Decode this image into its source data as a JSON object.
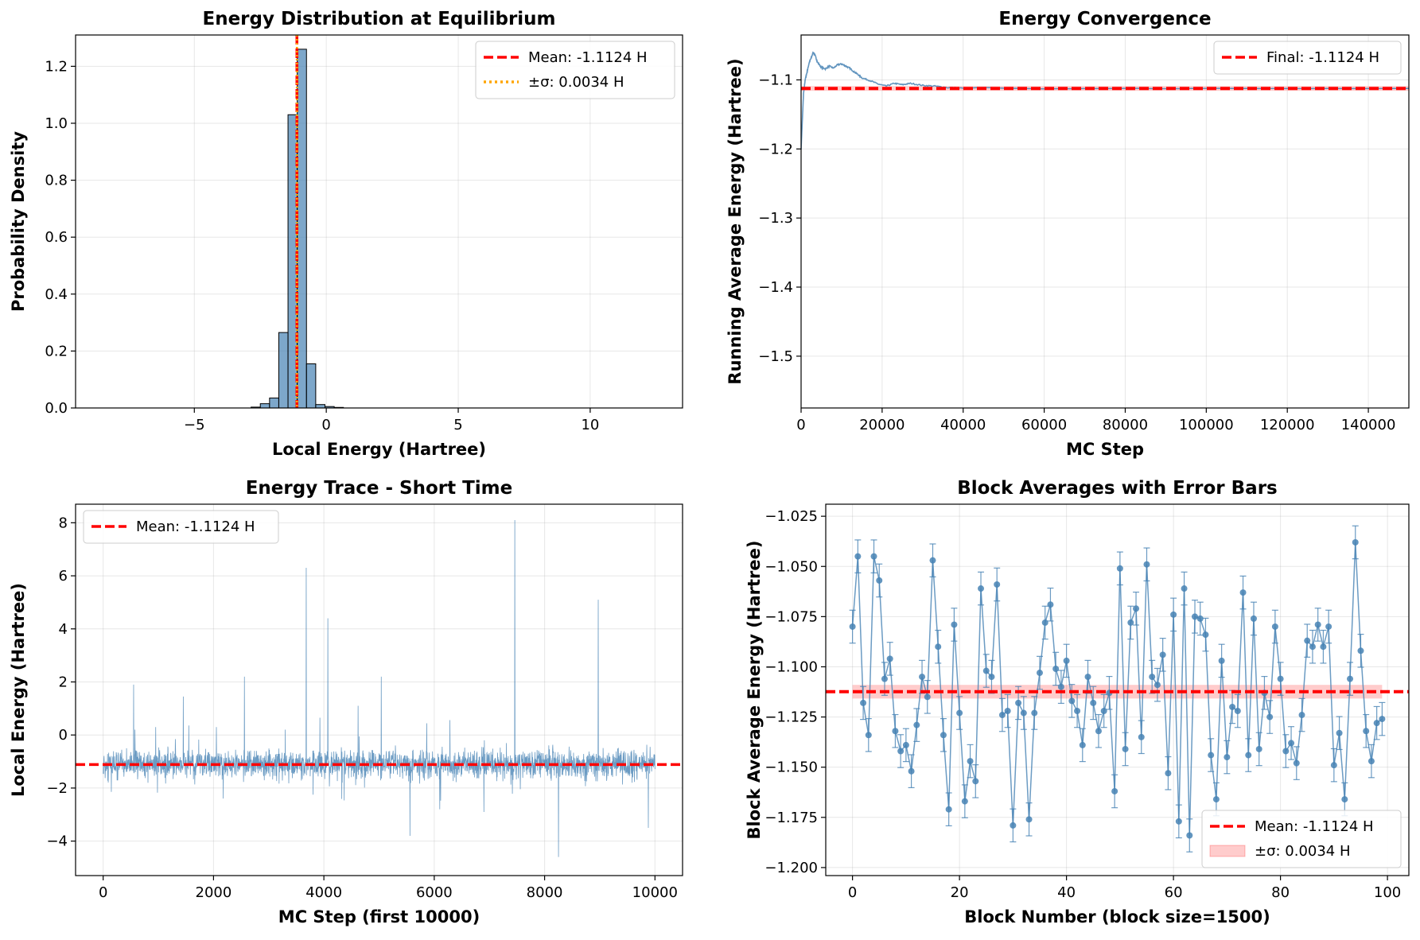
{
  "colors": {
    "steelblue": "#4682b4",
    "red": "#ff0000",
    "orange": "#ffa500",
    "grid": "#b0b0b0",
    "band": "#ff0000"
  },
  "chart_data": [
    {
      "id": "p1",
      "type": "bar",
      "title": "Energy Distribution at Equilibrium",
      "xlabel": "Local Energy (Hartree)",
      "ylabel": "Probability Density",
      "xlim": [
        -9.5,
        13.5
      ],
      "ylim": [
        0,
        1.31
      ],
      "xticks": [
        -5,
        0,
        5,
        10
      ],
      "xtick_labels": [
        "−5",
        "0",
        "5",
        "10"
      ],
      "yticks": [
        0,
        0.2,
        0.4,
        0.6,
        0.8,
        1.0,
        1.2
      ],
      "ytick_labels": [
        "0.0",
        "0.2",
        "0.4",
        "0.6",
        "0.8",
        "1.0",
        "1.2"
      ],
      "grid": true,
      "legend_position": "upper right",
      "bins": [
        {
          "x0": -2.85,
          "x1": -2.5,
          "value": 0.003
        },
        {
          "x0": -2.5,
          "x1": -2.15,
          "value": 0.015
        },
        {
          "x0": -2.15,
          "x1": -1.8,
          "value": 0.035
        },
        {
          "x0": -1.8,
          "x1": -1.45,
          "value": 0.265
        },
        {
          "x0": -1.45,
          "x1": -1.1,
          "value": 1.03
        },
        {
          "x0": -1.1,
          "x1": -0.75,
          "value": 1.26
        },
        {
          "x0": -0.75,
          "x1": -0.4,
          "value": 0.155
        },
        {
          "x0": -0.4,
          "x1": -0.05,
          "value": 0.012
        },
        {
          "x0": -0.05,
          "x1": 0.3,
          "value": 0.005
        },
        {
          "x0": 0.3,
          "x1": 0.65,
          "value": 0.002
        }
      ],
      "vlines": [
        {
          "x": -1.1124,
          "color": "#ff0000",
          "style": "dashed"
        },
        {
          "x": -1.1158,
          "color": "#ffa500",
          "style": "dotted"
        },
        {
          "x": -1.109,
          "color": "#ffa500",
          "style": "dotted"
        }
      ],
      "legend": [
        {
          "label": "Mean: -1.1124 H",
          "color": "#ff0000",
          "style": "dashed"
        },
        {
          "label": "±σ: 0.0034 H",
          "color": "#ffa500",
          "style": "dotted"
        }
      ]
    },
    {
      "id": "p2",
      "type": "line",
      "title": "Energy Convergence",
      "xlabel": "MC Step",
      "ylabel": "Running Average Energy (Hartree)",
      "xlim": [
        0,
        150000
      ],
      "ylim": [
        -1.575,
        -1.035
      ],
      "xticks": [
        0,
        20000,
        40000,
        60000,
        80000,
        100000,
        120000,
        140000
      ],
      "xtick_labels": [
        "0",
        "20000",
        "40000",
        "60000",
        "80000",
        "100000",
        "120000",
        "140000"
      ],
      "yticks": [
        -1.5,
        -1.4,
        -1.3,
        -1.2,
        -1.1
      ],
      "ytick_labels": [
        "−1.5",
        "−1.4",
        "−1.3",
        "−1.2",
        "−1.1"
      ],
      "grid": true,
      "legend_position": "upper right",
      "x": [
        0,
        300,
        600,
        1000,
        1500,
        2000,
        2500,
        3000,
        3500,
        4000,
        5000,
        6000,
        7000,
        8000,
        9000,
        10000,
        11000,
        12000,
        13000,
        14000,
        15000,
        17000,
        19000,
        21000,
        23000,
        25000,
        27000,
        30000,
        33000,
        36000,
        40000,
        45000,
        50000,
        60000,
        70000,
        80000,
        90000,
        100000,
        110000,
        120000,
        130000,
        140000,
        150000
      ],
      "y": [
        -1.2,
        -1.16,
        -1.12,
        -1.1,
        -1.088,
        -1.075,
        -1.068,
        -1.06,
        -1.065,
        -1.074,
        -1.082,
        -1.084,
        -1.08,
        -1.083,
        -1.078,
        -1.077,
        -1.08,
        -1.083,
        -1.088,
        -1.092,
        -1.097,
        -1.101,
        -1.106,
        -1.109,
        -1.105,
        -1.107,
        -1.105,
        -1.108,
        -1.109,
        -1.111,
        -1.112,
        -1.111,
        -1.112,
        -1.113,
        -1.1125,
        -1.1123,
        -1.1126,
        -1.1124,
        -1.1123,
        -1.1125,
        -1.1124,
        -1.1124,
        -1.1124
      ],
      "hline": -1.1124,
      "band": [
        -1.1158,
        -1.109
      ],
      "legend": [
        {
          "label": "Final: -1.1124 H",
          "color": "#ff0000",
          "style": "dashed"
        }
      ]
    },
    {
      "id": "p3",
      "type": "line",
      "title": "Energy Trace - Short Time",
      "xlabel": "MC Step (first 10000)",
      "ylabel": "Local Energy (Hartree)",
      "xlim": [
        -500,
        10500
      ],
      "ylim": [
        -5.3,
        8.7
      ],
      "xticks": [
        0,
        2000,
        4000,
        6000,
        8000,
        10000
      ],
      "xtick_labels": [
        "0",
        "2000",
        "4000",
        "6000",
        "8000",
        "10000"
      ],
      "yticks": [
        -4,
        -2,
        0,
        2,
        4,
        6,
        8
      ],
      "ytick_labels": [
        "−4",
        "−2",
        "0",
        "2",
        "4",
        "6",
        "8"
      ],
      "grid": true,
      "legend_position": "upper left",
      "n_steps": 10000,
      "noise_center": -1.1,
      "noise_spread": 0.35,
      "spikes": [
        {
          "x": 550,
          "y": 1.9
        },
        {
          "x": 950,
          "y": 0.3
        },
        {
          "x": 1450,
          "y": 1.45
        },
        {
          "x": 2050,
          "y": 0.3
        },
        {
          "x": 2560,
          "y": 2.2
        },
        {
          "x": 3300,
          "y": 0.2
        },
        {
          "x": 3680,
          "y": 6.3
        },
        {
          "x": 4070,
          "y": 4.4
        },
        {
          "x": 4620,
          "y": 1.1
        },
        {
          "x": 5040,
          "y": 2.2
        },
        {
          "x": 5560,
          "y": -3.8
        },
        {
          "x": 6100,
          "y": -2.8
        },
        {
          "x": 6900,
          "y": -2.9
        },
        {
          "x": 7460,
          "y": 8.1
        },
        {
          "x": 8250,
          "y": -4.6
        },
        {
          "x": 8970,
          "y": 5.1
        },
        {
          "x": 9880,
          "y": -3.5
        }
      ],
      "hline": -1.1124,
      "legend": [
        {
          "label": "Mean: -1.1124 H",
          "color": "#ff0000",
          "style": "dashed"
        }
      ]
    },
    {
      "id": "p4",
      "type": "scatter",
      "title": "Block Averages with Error Bars",
      "xlabel": "Block Number (block size=1500)",
      "ylabel": "Block Average Energy (Hartree)",
      "xlim": [
        -5,
        104
      ],
      "ylim": [
        -1.204,
        -1.019
      ],
      "xticks": [
        0,
        20,
        40,
        60,
        80,
        100
      ],
      "xtick_labels": [
        "0",
        "20",
        "40",
        "60",
        "80",
        "100"
      ],
      "yticks": [
        -1.2,
        -1.175,
        -1.15,
        -1.125,
        -1.1,
        -1.075,
        -1.05,
        -1.025
      ],
      "ytick_labels": [
        "−1.200",
        "−1.175",
        "−1.150",
        "−1.125",
        "−1.100",
        "−1.075",
        "−1.050",
        "−1.025"
      ],
      "grid": true,
      "legend_position": "lower right",
      "error": 0.0082,
      "values": [
        -1.08,
        -1.045,
        -1.118,
        -1.134,
        -1.045,
        -1.057,
        -1.106,
        -1.096,
        -1.132,
        -1.142,
        -1.139,
        -1.152,
        -1.129,
        -1.105,
        -1.115,
        -1.047,
        -1.09,
        -1.134,
        -1.171,
        -1.079,
        -1.123,
        -1.167,
        -1.147,
        -1.157,
        -1.061,
        -1.102,
        -1.105,
        -1.059,
        -1.124,
        -1.122,
        -1.179,
        -1.118,
        -1.123,
        -1.176,
        -1.123,
        -1.103,
        -1.078,
        -1.069,
        -1.101,
        -1.11,
        -1.097,
        -1.117,
        -1.122,
        -1.139,
        -1.105,
        -1.118,
        -1.132,
        -1.122,
        -1.113,
        -1.162,
        -1.051,
        -1.141,
        -1.078,
        -1.071,
        -1.135,
        -1.049,
        -1.105,
        -1.109,
        -1.094,
        -1.153,
        -1.074,
        -1.177,
        -1.061,
        -1.184,
        -1.075,
        -1.076,
        -1.084,
        -1.144,
        -1.166,
        -1.097,
        -1.145,
        -1.12,
        -1.122,
        -1.063,
        -1.144,
        -1.076,
        -1.141,
        -1.113,
        -1.125,
        -1.08,
        -1.106,
        -1.142,
        -1.138,
        -1.148,
        -1.124,
        -1.087,
        -1.09,
        -1.079,
        -1.09,
        -1.08,
        -1.149,
        -1.133,
        -1.166,
        -1.106,
        -1.038,
        -1.092,
        -1.132,
        -1.147,
        -1.128,
        -1.126
      ],
      "hline": -1.1124,
      "band": [
        -1.1158,
        -1.109
      ],
      "legend": [
        {
          "label": "Mean: -1.1124 H",
          "color": "#ff0000",
          "style": "dashed"
        },
        {
          "label": "±σ: 0.0034 H",
          "color": "#ff0000",
          "style": "band"
        }
      ]
    }
  ]
}
